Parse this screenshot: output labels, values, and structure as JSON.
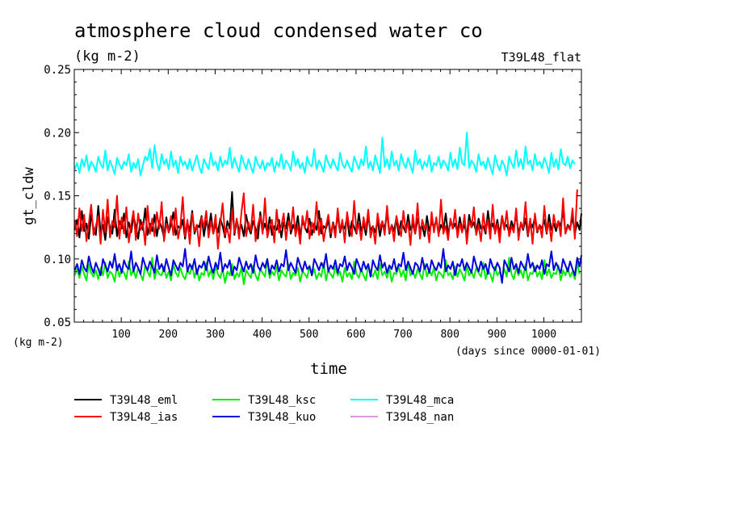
{
  "chart_data": {
    "type": "line",
    "title": "atmosphere cloud condensed water co",
    "subtitle": "(kg m-2)",
    "experiment_label": "T39L48_flat",
    "xlabel": "time",
    "x_units": "(days since 0000-01-01)",
    "ylabel": "gt_cldw",
    "y_units": "(kg m-2)",
    "xlim": [
      0,
      1080
    ],
    "ylim": [
      0.05,
      0.25
    ],
    "x_ticks": [
      "100",
      "200",
      "300",
      "400",
      "500",
      "600",
      "700",
      "800",
      "900",
      "1000"
    ],
    "y_ticks": [
      "0.05",
      "0.10",
      "0.15",
      "0.20",
      "0.25"
    ],
    "grid": false,
    "legend_position": "bottom",
    "x_step_days": 5,
    "series": [
      {
        "name": "T39L48_eml",
        "color": "#000000",
        "values": [
          0.123,
          0.131,
          0.117,
          0.138,
          0.122,
          0.128,
          0.116,
          0.135,
          0.124,
          0.119,
          0.142,
          0.121,
          0.127,
          0.115,
          0.133,
          0.125,
          0.12,
          0.139,
          0.118,
          0.13,
          0.124,
          0.136,
          0.117,
          0.129,
          0.121,
          0.134,
          0.126,
          0.116,
          0.131,
          0.123,
          0.14,
          0.119,
          0.128,
          0.122,
          0.135,
          0.118,
          0.13,
          0.125,
          0.117,
          0.133,
          0.121,
          0.127,
          0.137,
          0.119,
          0.126,
          0.124,
          0.131,
          0.116,
          0.129,
          0.122,
          0.138,
          0.12,
          0.127,
          0.125,
          0.134,
          0.118,
          0.13,
          0.123,
          0.136,
          0.12,
          0.128,
          0.121,
          0.132,
          0.126,
          0.117,
          0.13,
          0.124,
          0.153,
          0.119,
          0.131,
          0.122,
          0.127,
          0.118,
          0.135,
          0.125,
          0.12,
          0.13,
          0.124,
          0.116,
          0.137,
          0.122,
          0.128,
          0.121,
          0.133,
          0.119,
          0.126,
          0.123,
          0.131,
          0.117,
          0.129,
          0.124,
          0.136,
          0.12,
          0.127,
          0.122,
          0.134,
          0.118,
          0.13,
          0.125,
          0.121,
          0.132,
          0.119,
          0.128,
          0.123,
          0.138,
          0.12,
          0.126,
          0.124,
          0.131,
          0.117,
          0.129,
          0.122,
          0.135,
          0.121,
          0.127,
          0.124,
          0.133,
          0.118,
          0.13,
          0.125,
          0.12,
          0.136,
          0.122,
          0.128,
          0.119,
          0.134,
          0.123,
          0.126,
          0.121,
          0.131,
          0.118,
          0.129,
          0.124,
          0.137,
          0.12,
          0.127,
          0.122,
          0.133,
          0.119,
          0.13,
          0.125,
          0.121,
          0.135,
          0.123,
          0.128,
          0.12,
          0.132,
          0.124,
          0.126,
          0.118,
          0.134,
          0.122,
          0.129,
          0.125,
          0.131,
          0.12,
          0.127,
          0.123,
          0.136,
          0.119,
          0.13,
          0.124,
          0.128,
          0.121,
          0.133,
          0.122,
          0.127,
          0.118,
          0.135,
          0.125,
          0.129,
          0.121,
          0.132,
          0.124,
          0.126,
          0.12,
          0.138,
          0.123,
          0.128,
          0.122,
          0.131,
          0.119,
          0.134,
          0.125,
          0.127,
          0.121,
          0.13,
          0.124,
          0.136,
          0.12,
          0.128,
          0.123,
          0.132,
          0.118,
          0.129,
          0.125,
          0.133,
          0.121,
          0.127,
          0.124,
          0.131,
          0.12,
          0.135,
          0.123,
          0.128,
          0.122,
          0.13,
          0.126,
          0.139,
          0.121,
          0.127,
          0.124,
          0.133,
          0.12,
          0.129,
          0.123,
          0.136
        ]
      },
      {
        "name": "T39L48_ias",
        "color": "#ff0000",
        "values": [
          0.131,
          0.118,
          0.14,
          0.122,
          0.135,
          0.114,
          0.128,
          0.143,
          0.119,
          0.126,
          0.134,
          0.112,
          0.139,
          0.121,
          0.147,
          0.117,
          0.13,
          0.125,
          0.15,
          0.116,
          0.133,
          0.12,
          0.141,
          0.113,
          0.127,
          0.138,
          0.115,
          0.136,
          0.123,
          0.129,
          0.111,
          0.142,
          0.12,
          0.132,
          0.118,
          0.137,
          0.124,
          0.145,
          0.114,
          0.128,
          0.121,
          0.134,
          0.119,
          0.14,
          0.116,
          0.126,
          0.149,
          0.118,
          0.131,
          0.112,
          0.136,
          0.122,
          0.127,
          0.11,
          0.133,
          0.125,
          0.138,
          0.117,
          0.13,
          0.12,
          0.135,
          0.108,
          0.128,
          0.144,
          0.119,
          0.124,
          0.113,
          0.139,
          0.121,
          0.132,
          0.116,
          0.137,
          0.152,
          0.118,
          0.129,
          0.122,
          0.143,
          0.114,
          0.127,
          0.134,
          0.12,
          0.148,
          0.117,
          0.125,
          0.131,
          0.113,
          0.139,
          0.121,
          0.126,
          0.136,
          0.115,
          0.13,
          0.123,
          0.141,
          0.118,
          0.127,
          0.112,
          0.134,
          0.124,
          0.138,
          0.116,
          0.129,
          0.121,
          0.145,
          0.119,
          0.132,
          0.114,
          0.126,
          0.135,
          0.12,
          0.128,
          0.117,
          0.14,
          0.122,
          0.131,
          0.113,
          0.137,
          0.125,
          0.118,
          0.146,
          0.121,
          0.128,
          0.115,
          0.133,
          0.123,
          0.139,
          0.117,
          0.126,
          0.112,
          0.136,
          0.124,
          0.13,
          0.119,
          0.142,
          0.121,
          0.127,
          0.114,
          0.134,
          0.125,
          0.118,
          0.138,
          0.122,
          0.129,
          0.111,
          0.135,
          0.12,
          0.144,
          0.116,
          0.131,
          0.124,
          0.127,
          0.113,
          0.137,
          0.121,
          0.133,
          0.118,
          0.147,
          0.12,
          0.126,
          0.115,
          0.132,
          0.124,
          0.139,
          0.117,
          0.128,
          0.121,
          0.135,
          0.112,
          0.13,
          0.125,
          0.141,
          0.119,
          0.127,
          0.114,
          0.136,
          0.122,
          0.131,
          0.116,
          0.143,
          0.12,
          0.128,
          0.113,
          0.134,
          0.123,
          0.138,
          0.118,
          0.126,
          0.121,
          0.14,
          0.115,
          0.129,
          0.124,
          0.145,
          0.119,
          0.132,
          0.112,
          0.136,
          0.122,
          0.127,
          0.117,
          0.142,
          0.121,
          0.129,
          0.114,
          0.135,
          0.125,
          0.13,
          0.118,
          0.148,
          0.12,
          0.126,
          0.123,
          0.14,
          0.116,
          0.155
        ]
      },
      {
        "name": "T39L48_ksc",
        "color": "#00ee00",
        "values": [
          0.087,
          0.092,
          0.085,
          0.094,
          0.088,
          0.083,
          0.096,
          0.089,
          0.086,
          0.091,
          0.084,
          0.093,
          0.087,
          0.097,
          0.085,
          0.09,
          0.088,
          0.082,
          0.095,
          0.086,
          0.092,
          0.089,
          0.084,
          0.098,
          0.087,
          0.091,
          0.085,
          0.093,
          0.088,
          0.083,
          0.095,
          0.09,
          0.086,
          0.101,
          0.084,
          0.092,
          0.088,
          0.087,
          0.094,
          0.085,
          0.09,
          0.083,
          0.096,
          0.089,
          0.086,
          0.093,
          0.087,
          0.084,
          0.091,
          0.088,
          0.095,
          0.085,
          0.092,
          0.083,
          0.089,
          0.087,
          0.097,
          0.086,
          0.091,
          0.084,
          0.094,
          0.088,
          0.085,
          0.092,
          0.081,
          0.09,
          0.087,
          0.096,
          0.084,
          0.089,
          0.086,
          0.093,
          0.08,
          0.091,
          0.088,
          0.085,
          0.095,
          0.087,
          0.083,
          0.092,
          0.089,
          0.086,
          0.1,
          0.085,
          0.09,
          0.087,
          0.094,
          0.083,
          0.091,
          0.088,
          0.086,
          0.096,
          0.084,
          0.089,
          0.087,
          0.093,
          0.082,
          0.09,
          0.088,
          0.085,
          0.095,
          0.087,
          0.092,
          0.084,
          0.089,
          0.086,
          0.097,
          0.083,
          0.091,
          0.088,
          0.085,
          0.094,
          0.087,
          0.09,
          0.082,
          0.093,
          0.086,
          0.089,
          0.084,
          0.098,
          0.088,
          0.085,
          0.092,
          0.087,
          0.083,
          0.095,
          0.089,
          0.086,
          0.091,
          0.084,
          0.096,
          0.087,
          0.09,
          0.085,
          0.093,
          0.082,
          0.089,
          0.088,
          0.094,
          0.086,
          0.091,
          0.083,
          0.097,
          0.087,
          0.09,
          0.085,
          0.092,
          0.088,
          0.084,
          0.096,
          0.086,
          0.091,
          0.087,
          0.093,
          0.083,
          0.09,
          0.088,
          0.085,
          0.099,
          0.087,
          0.089,
          0.084,
          0.094,
          0.086,
          0.092,
          0.088,
          0.083,
          0.095,
          0.087,
          0.09,
          0.085,
          0.093,
          0.089,
          0.086,
          0.097,
          0.084,
          0.091,
          0.088,
          0.082,
          0.094,
          0.087,
          0.09,
          0.085,
          0.092,
          0.086,
          0.101,
          0.088,
          0.084,
          0.093,
          0.087,
          0.091,
          0.085,
          0.096,
          0.083,
          0.089,
          0.088,
          0.094,
          0.086,
          0.09,
          0.084,
          0.099,
          0.087,
          0.092,
          0.085,
          0.089,
          0.088,
          0.095,
          0.083,
          0.091,
          0.087,
          0.093,
          0.086,
          0.09,
          0.084,
          0.097,
          0.088
        ]
      },
      {
        "name": "T39L48_kuo",
        "color": "#0000dd",
        "values": [
          0.091,
          0.096,
          0.088,
          0.099,
          0.093,
          0.09,
          0.102,
          0.094,
          0.089,
          0.097,
          0.092,
          0.087,
          0.1,
          0.095,
          0.09,
          0.098,
          0.093,
          0.104,
          0.091,
          0.096,
          0.089,
          0.099,
          0.094,
          0.092,
          0.106,
          0.09,
          0.097,
          0.093,
          0.088,
          0.101,
          0.095,
          0.091,
          0.098,
          0.094,
          0.089,
          0.103,
          0.092,
          0.096,
          0.09,
          0.1,
          0.093,
          0.087,
          0.099,
          0.095,
          0.091,
          0.097,
          0.094,
          0.108,
          0.09,
          0.096,
          0.092,
          0.1,
          0.088,
          0.095,
          0.093,
          0.098,
          0.091,
          0.102,
          0.094,
          0.089,
          0.097,
          0.092,
          0.105,
          0.09,
          0.096,
          0.093,
          0.099,
          0.087,
          0.094,
          0.091,
          0.101,
          0.095,
          0.09,
          0.098,
          0.092,
          0.096,
          0.089,
          0.103,
          0.094,
          0.091,
          0.097,
          0.093,
          0.1,
          0.088,
          0.095,
          0.092,
          0.099,
          0.09,
          0.096,
          0.094,
          0.107,
          0.091,
          0.097,
          0.093,
          0.089,
          0.101,
          0.095,
          0.09,
          0.098,
          0.092,
          0.094,
          0.087,
          0.1,
          0.096,
          0.091,
          0.097,
          0.093,
          0.104,
          0.09,
          0.095,
          0.092,
          0.099,
          0.089,
          0.096,
          0.094,
          0.102,
          0.091,
          0.097,
          0.093,
          0.088,
          0.1,
          0.095,
          0.09,
          0.098,
          0.092,
          0.096,
          0.086,
          0.099,
          0.094,
          0.091,
          0.103,
          0.093,
          0.097,
          0.089,
          0.095,
          0.092,
          0.1,
          0.09,
          0.096,
          0.094,
          0.105,
          0.091,
          0.098,
          0.093,
          0.088,
          0.097,
          0.095,
          0.09,
          0.101,
          0.092,
          0.096,
          0.089,
          0.099,
          0.094,
          0.091,
          0.097,
          0.093,
          0.108,
          0.09,
          0.095,
          0.092,
          0.098,
          0.087,
          0.096,
          0.094,
          0.1,
          0.091,
          0.097,
          0.093,
          0.089,
          0.102,
          0.095,
          0.09,
          0.098,
          0.092,
          0.096,
          0.088,
          0.1,
          0.094,
          0.091,
          0.097,
          0.093,
          0.081,
          0.099,
          0.095,
          0.09,
          0.101,
          0.092,
          0.096,
          0.089,
          0.098,
          0.094,
          0.091,
          0.104,
          0.093,
          0.097,
          0.09,
          0.095,
          0.092,
          0.099,
          0.088,
          0.096,
          0.094,
          0.106,
          0.091,
          0.097,
          0.093,
          0.089,
          0.1,
          0.095,
          0.09,
          0.098,
          0.092,
          0.087,
          0.101,
          0.094,
          0.103
        ]
      },
      {
        "name": "T39L48_mca",
        "color": "#00ffff",
        "values": [
          0.171,
          0.176,
          0.168,
          0.179,
          0.173,
          0.182,
          0.17,
          0.177,
          0.174,
          0.169,
          0.181,
          0.175,
          0.172,
          0.186,
          0.17,
          0.178,
          0.173,
          0.167,
          0.18,
          0.175,
          0.171,
          0.177,
          0.174,
          0.183,
          0.169,
          0.176,
          0.172,
          0.179,
          0.166,
          0.174,
          0.181,
          0.178,
          0.187,
          0.172,
          0.19,
          0.176,
          0.17,
          0.183,
          0.175,
          0.179,
          0.171,
          0.185,
          0.173,
          0.178,
          0.168,
          0.181,
          0.174,
          0.177,
          0.171,
          0.179,
          0.17,
          0.176,
          0.182,
          0.173,
          0.168,
          0.179,
          0.175,
          0.171,
          0.184,
          0.174,
          0.177,
          0.17,
          0.181,
          0.173,
          0.178,
          0.175,
          0.188,
          0.172,
          0.18,
          0.174,
          0.169,
          0.182,
          0.176,
          0.171,
          0.179,
          0.173,
          0.168,
          0.181,
          0.175,
          0.172,
          0.178,
          0.17,
          0.176,
          0.174,
          0.18,
          0.169,
          0.177,
          0.173,
          0.183,
          0.171,
          0.178,
          0.175,
          0.17,
          0.185,
          0.174,
          0.179,
          0.172,
          0.176,
          0.168,
          0.181,
          0.175,
          0.173,
          0.187,
          0.171,
          0.178,
          0.174,
          0.169,
          0.182,
          0.176,
          0.172,
          0.179,
          0.174,
          0.17,
          0.184,
          0.175,
          0.172,
          0.178,
          0.173,
          0.169,
          0.181,
          0.176,
          0.171,
          0.179,
          0.174,
          0.189,
          0.172,
          0.177,
          0.17,
          0.182,
          0.175,
          0.168,
          0.196,
          0.173,
          0.179,
          0.171,
          0.185,
          0.174,
          0.178,
          0.17,
          0.183,
          0.176,
          0.172,
          0.18,
          0.174,
          0.168,
          0.186,
          0.175,
          0.179,
          0.171,
          0.177,
          0.173,
          0.182,
          0.169,
          0.176,
          0.174,
          0.181,
          0.172,
          0.178,
          0.175,
          0.17,
          0.184,
          0.173,
          0.179,
          0.171,
          0.188,
          0.176,
          0.174,
          0.2,
          0.172,
          0.178,
          0.175,
          0.169,
          0.183,
          0.174,
          0.177,
          0.171,
          0.18,
          0.173,
          0.167,
          0.182,
          0.175,
          0.17,
          0.178,
          0.174,
          0.166,
          0.181,
          0.176,
          0.172,
          0.186,
          0.173,
          0.179,
          0.171,
          0.189,
          0.175,
          0.178,
          0.17,
          0.183,
          0.174,
          0.177,
          0.172,
          0.18,
          0.175,
          0.168,
          0.184,
          0.173,
          0.179,
          0.171,
          0.187,
          0.176,
          0.174,
          0.181,
          0.172,
          0.178,
          0.175
        ]
      },
      {
        "name": "T39L48_nan",
        "color": "#dd99dd",
        "values": []
      }
    ]
  }
}
